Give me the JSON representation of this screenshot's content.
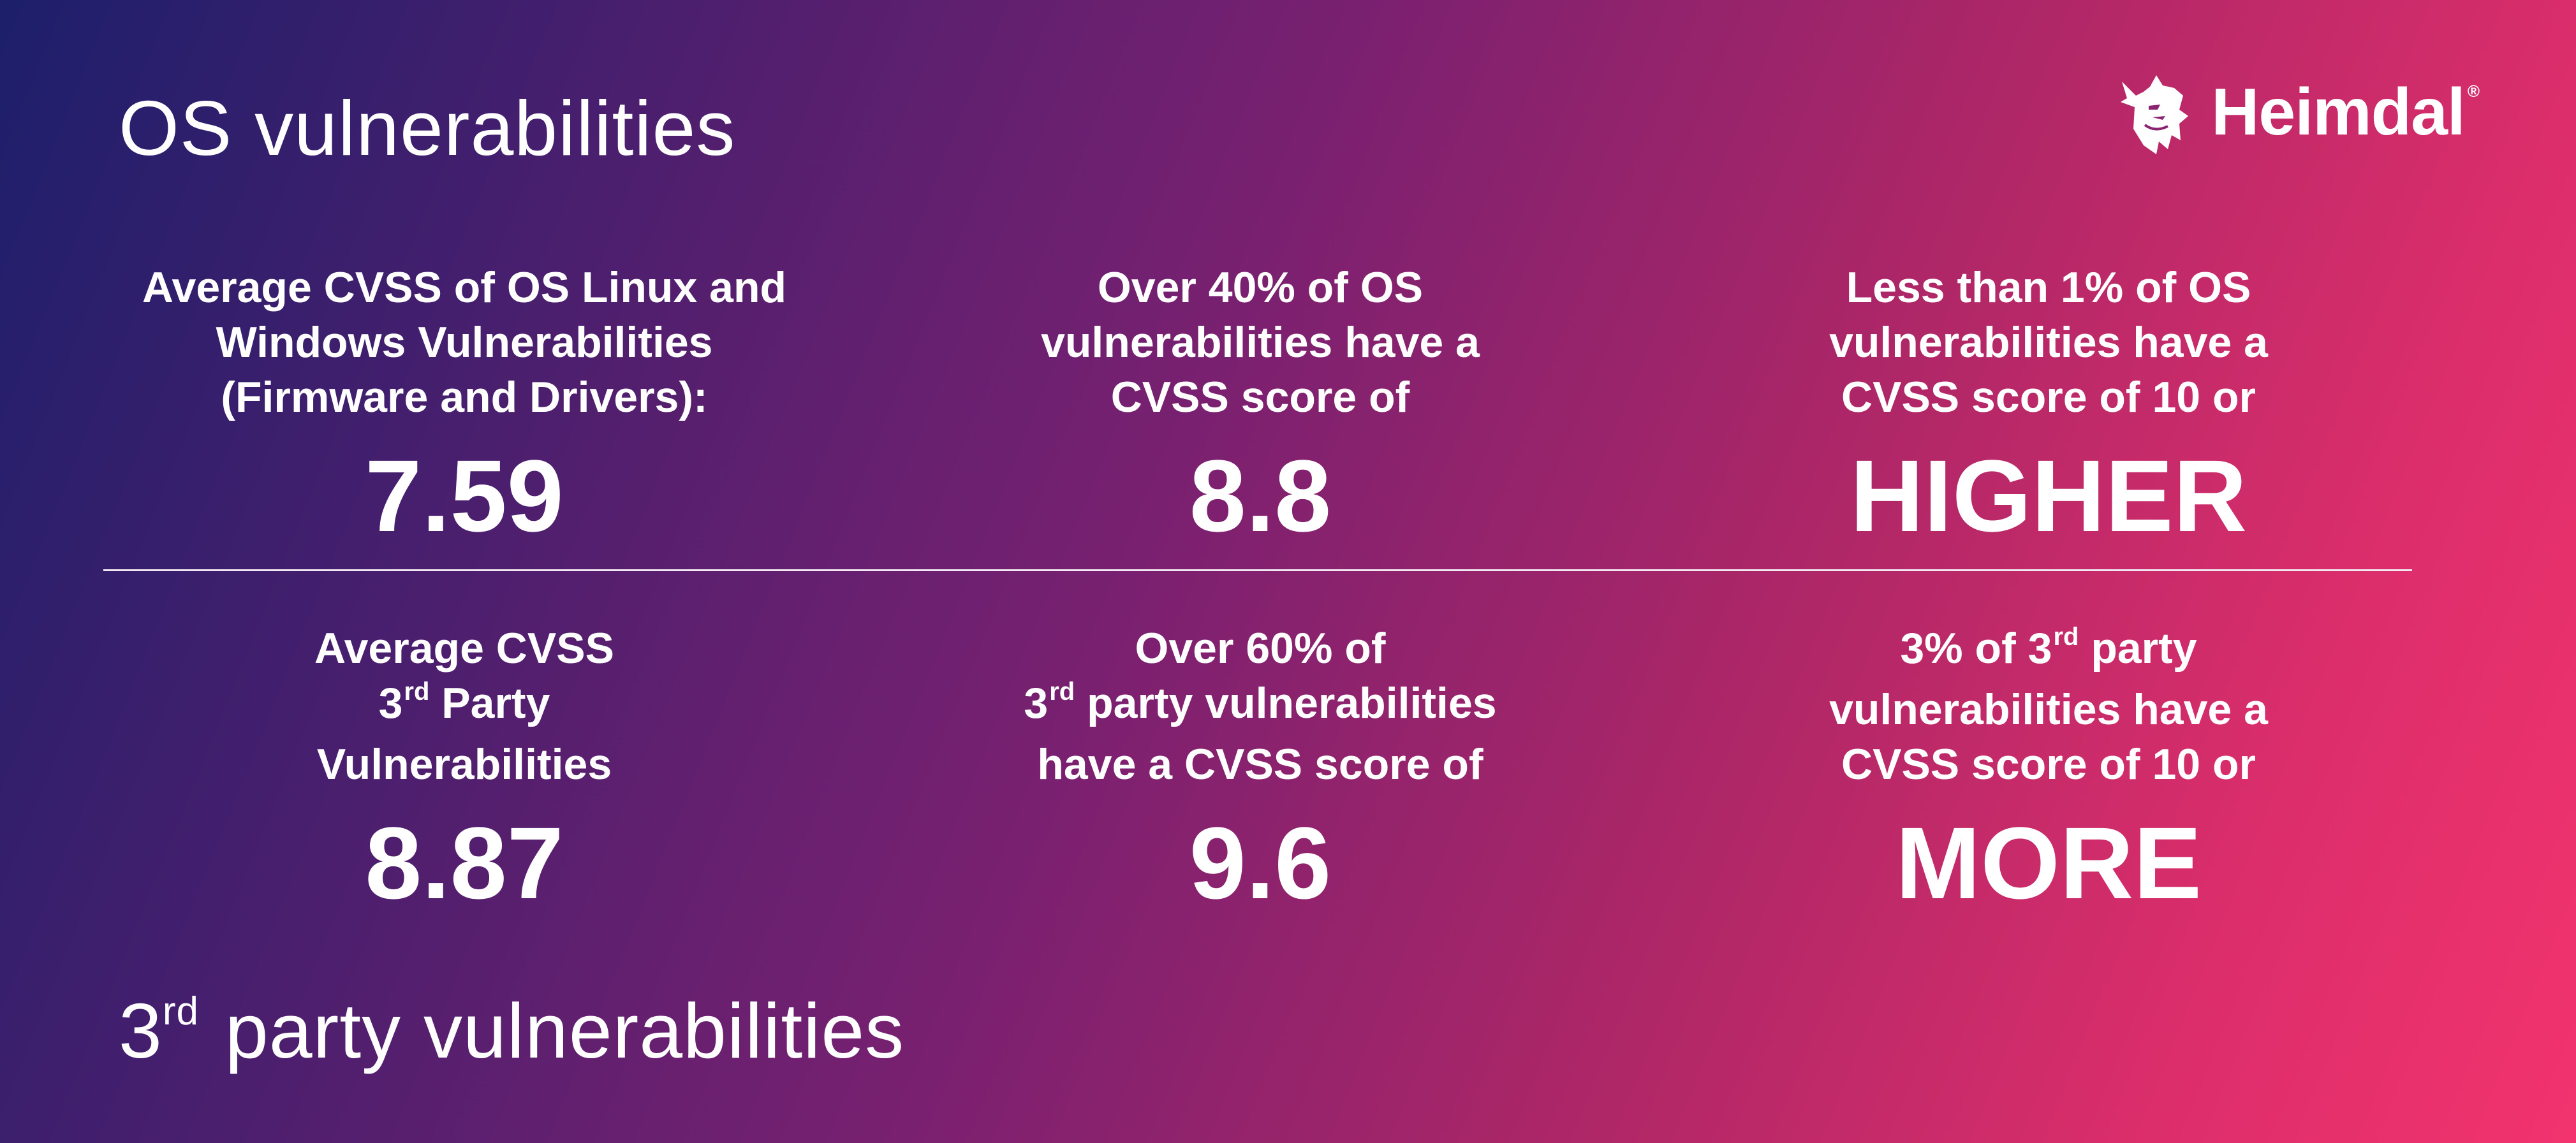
{
  "header": {
    "os_title": "OS vulnerabilities"
  },
  "footer": {
    "third_party_sup": "rd",
    "third_party_title_prefix": "3",
    "third_party_title_rest": " party vulnerabilities"
  },
  "logo": {
    "text": "Heimdal",
    "reg_mark": "®",
    "icon": "viking-head-icon"
  },
  "os_stats": [
    {
      "lines": [
        "Average CVSS of OS Linux and",
        "Windows Vulnerabilities",
        "(Firmware and Drivers):"
      ],
      "value": "7.59"
    },
    {
      "lines": [
        "Over 40% of OS",
        "vulnerabilities have a",
        "CVSS score of"
      ],
      "value": "8.8"
    },
    {
      "lines": [
        "Less than 1% of OS",
        "vulnerabilities have a",
        "CVSS score of 10 or"
      ],
      "value": "HIGHER"
    }
  ],
  "third_party_stats": [
    {
      "line1": "Average CVSS",
      "line2_prefix": "3",
      "line2_sup": "rd",
      "line2_rest": " Party",
      "line3": "Vulnerabilities",
      "value": "8.87"
    },
    {
      "line1": "Over 60% of",
      "line2_prefix": "3",
      "line2_sup": "rd",
      "line2_rest": " party vulnerabilities",
      "line3": "have a CVSS score of",
      "value": "9.6"
    },
    {
      "line1_prefix": "3% of 3",
      "line1_sup": "rd",
      "line1_rest": " party",
      "line2": "vulnerabilities have a",
      "line3": "CVSS score of 10 or",
      "value": "MORE"
    }
  ],
  "colors": {
    "gradient_start": "#1d1f6b",
    "gradient_mid": "#7a2070",
    "gradient_end": "#f2336e",
    "text": "#ffffff"
  }
}
